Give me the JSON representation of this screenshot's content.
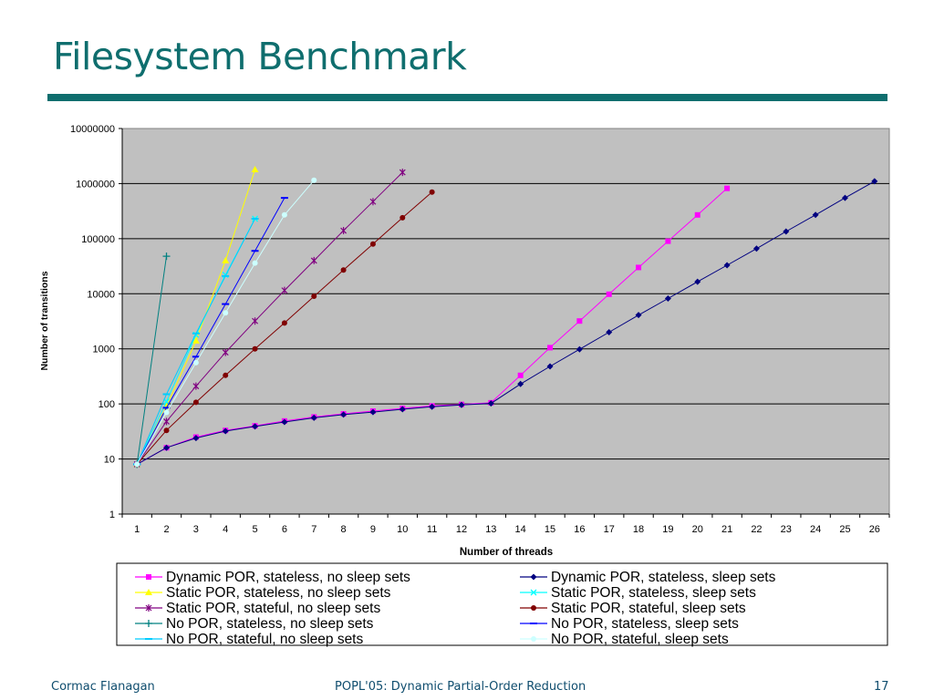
{
  "slide": {
    "title": "Filesystem Benchmark",
    "footer_left": "Cormac Flanagan",
    "footer_center": "POPL'05: Dynamic Partial-Order Reduction",
    "footer_right": "17"
  },
  "colors": {
    "title": "#0f6e6e",
    "plot_background": "#c0c0c0"
  },
  "chart_data": {
    "type": "line",
    "title": "",
    "xlabel": "Number of threads",
    "ylabel": "Number of transitions",
    "yscale": "log",
    "ylim": [
      1,
      10000000
    ],
    "grid": "horizontal",
    "legend_position": "bottom",
    "categories": [
      1,
      2,
      3,
      4,
      5,
      6,
      7,
      8,
      9,
      10,
      11,
      12,
      13,
      14,
      15,
      16,
      17,
      18,
      19,
      20,
      21,
      22,
      23,
      24,
      25,
      26
    ],
    "y_ticks": [
      "1",
      "10",
      "100",
      "1000",
      "10000",
      "100000",
      "1000000",
      "10000000"
    ],
    "series": [
      {
        "name": "Dynamic POR, stateless, no sleep sets",
        "color": "#ff00ff",
        "marker": "square",
        "x": [
          1,
          2,
          3,
          4,
          5,
          6,
          7,
          8,
          9,
          10,
          11,
          12,
          13,
          14,
          15,
          16,
          17,
          18,
          19,
          20,
          21
        ],
        "values": [
          8,
          16,
          25,
          33,
          40,
          49,
          58,
          66,
          74,
          83,
          92,
          98,
          105,
          330,
          1050,
          3200,
          9800,
          30000,
          90000,
          270000,
          820000
        ]
      },
      {
        "name": "Dynamic POR, stateless, sleep sets",
        "color": "#000080",
        "marker": "diamond",
        "x": [
          1,
          2,
          3,
          4,
          5,
          6,
          7,
          8,
          9,
          10,
          11,
          12,
          13,
          14,
          15,
          16,
          17,
          18,
          19,
          20,
          21,
          22,
          23,
          24,
          25,
          26
        ],
        "values": [
          8,
          16,
          24,
          32,
          39,
          47,
          56,
          64,
          71,
          80,
          89,
          96,
          102,
          230,
          480,
          980,
          2000,
          4100,
          8200,
          16500,
          33000,
          66000,
          135000,
          270000,
          550000,
          1100000
        ]
      },
      {
        "name": "Static POR, stateless, no sleep sets",
        "color": "#ffff00",
        "marker": "triangle",
        "x": [
          1,
          2,
          3,
          4,
          5
        ],
        "values": [
          8,
          90,
          1400,
          40000,
          1800000
        ]
      },
      {
        "name": "Static POR, stateless, sleep sets",
        "color": "#00ffff",
        "marker": "x",
        "x": [
          1,
          2,
          3,
          4,
          5
        ],
        "values": [
          8,
          110,
          1800,
          22000,
          230000
        ]
      },
      {
        "name": "Static POR, stateful, no sleep sets",
        "color": "#800080",
        "marker": "star",
        "x": [
          1,
          2,
          3,
          4,
          5,
          6,
          7,
          8,
          9,
          10
        ],
        "values": [
          8,
          48,
          210,
          860,
          3200,
          11500,
          40000,
          140000,
          470000,
          1600000
        ]
      },
      {
        "name": "Static POR, stateful, sleep sets",
        "color": "#800000",
        "marker": "circle",
        "x": [
          1,
          2,
          3,
          4,
          5,
          6,
          7,
          8,
          9,
          10,
          11
        ],
        "values": [
          8,
          33,
          107,
          330,
          1000,
          2950,
          9000,
          27000,
          80000,
          240000,
          700000
        ]
      },
      {
        "name": "No POR, stateless, no sleep sets",
        "color": "#008080",
        "marker": "plus",
        "x": [
          1,
          2
        ],
        "values": [
          8,
          48000
        ]
      },
      {
        "name": "No POR, stateless, sleep sets",
        "color": "#0000ff",
        "marker": "dash",
        "x": [
          1,
          2,
          3,
          4,
          5,
          6
        ],
        "values": [
          8,
          85,
          720,
          6500,
          60000,
          550000
        ]
      },
      {
        "name": "No POR, stateful, no sleep sets",
        "color": "#00ccff",
        "marker": "dash",
        "x": [
          1,
          2,
          3,
          4,
          5
        ],
        "values": [
          8,
          150,
          1900,
          21000,
          230000
        ]
      },
      {
        "name": "No POR, stateful, sleep sets",
        "color": "#ccffff",
        "marker": "circle",
        "x": [
          1,
          2,
          3,
          4,
          5,
          6,
          7
        ],
        "values": [
          8,
          70,
          560,
          4500,
          36000,
          270000,
          1150000
        ]
      }
    ]
  }
}
